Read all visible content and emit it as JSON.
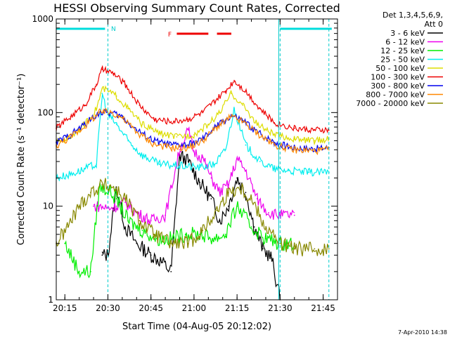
{
  "chart_data": {
    "type": "line",
    "title": "HESSI Observing Summary Count Rates, Corrected",
    "xlabel": "Start Time (04-Aug-05 20:12:02)",
    "ylabel": "Corrected Count Rate (s⁻¹ detector⁻¹)",
    "y_scale": "log",
    "ylim": [
      1,
      1000
    ],
    "xlim": [
      "20:12",
      "21:50"
    ],
    "x_tick_labels": [
      "20:15",
      "20:30",
      "20:45",
      "21:00",
      "21:15",
      "21:30",
      "21:45"
    ],
    "x_ticks": [
      "20:15",
      "20:30",
      "20:45",
      "21:00",
      "21:15",
      "21:30",
      "21:45"
    ],
    "y_tick_labels": [
      "1",
      "10",
      "100",
      "1000"
    ],
    "y_ticks": [
      1,
      10,
      100,
      1000
    ],
    "legend_title": [
      "Det 1,3,4,5,6,9,",
      "Att 0"
    ],
    "legend_placement": "right",
    "timestamp": "7-Apr-2010 14:38",
    "markers": {
      "N_label": "N",
      "F_label": "F",
      "night_bars": [
        [
          "20:12",
          "20:29"
        ],
        [
          "21:30",
          "21:48"
        ]
      ],
      "flare_bars": [
        [
          "20:54",
          "21:05"
        ],
        [
          "21:08",
          "21:13"
        ]
      ],
      "dashed_lines": [
        "20:30",
        "21:30",
        "21:47"
      ],
      "solid_lines": [
        "21:30"
      ]
    },
    "series": [
      {
        "name": "3 - 6 keV",
        "color": "#000000",
        "x": [
          "20:28",
          "20:30",
          "20:33",
          "20:36",
          "20:40",
          "20:45",
          "20:49",
          "20:52",
          "20:55",
          "20:58",
          "21:02",
          "21:06",
          "21:09",
          "21:12",
          "21:15",
          "21:18",
          "21:21",
          "21:24",
          "21:27",
          "21:30"
        ],
        "y": [
          3,
          3,
          16,
          6,
          4,
          3,
          2.5,
          2,
          35,
          30,
          18,
          12,
          7,
          10,
          20,
          14,
          6,
          3.5,
          2.8,
          1
        ]
      },
      {
        "name": "6 - 12 keV",
        "color": "#ee00ee",
        "x": [
          "20:25",
          "20:27",
          "20:30",
          "20:33",
          "20:36",
          "20:40",
          "20:45",
          "20:50",
          "20:55",
          "20:58",
          "21:00",
          "21:03",
          "21:06",
          "21:09",
          "21:12",
          "21:15",
          "21:18",
          "21:22",
          "21:26",
          "21:30",
          "21:35"
        ],
        "y": [
          10,
          10,
          9.5,
          10,
          11,
          8.5,
          7,
          8,
          40,
          65,
          38,
          33,
          20,
          14,
          17,
          32,
          24,
          12,
          8.5,
          8,
          8
        ]
      },
      {
        "name": "12 - 25 keV",
        "color": "#00ee00",
        "x": [
          "20:15",
          "20:20",
          "20:24",
          "20:27",
          "20:30",
          "20:33",
          "20:37",
          "20:42",
          "20:47",
          "20:52",
          "20:57",
          "21:02",
          "21:07",
          "21:11",
          "21:15",
          "21:20",
          "21:25",
          "21:30",
          "21:35"
        ],
        "y": [
          4,
          2,
          2,
          16,
          15,
          12,
          7,
          5.5,
          4.5,
          4.5,
          5,
          5,
          4.5,
          5,
          10,
          6,
          4.5,
          4,
          4
        ]
      },
      {
        "name": "25 - 50 keV",
        "color": "#00eeee",
        "x": [
          "20:12",
          "20:17",
          "20:22",
          "20:26",
          "20:28",
          "20:30",
          "20:33",
          "20:37",
          "20:42",
          "20:48",
          "20:55",
          "21:02",
          "21:07",
          "21:11",
          "21:14",
          "21:18",
          "21:23",
          "21:28",
          "21:33",
          "21:40",
          "21:47"
        ],
        "y": [
          20,
          22,
          25,
          28,
          160,
          95,
          75,
          50,
          35,
          28,
          27,
          26,
          28,
          40,
          110,
          45,
          30,
          25,
          24,
          23,
          23
        ]
      },
      {
        "name": "50 - 100 keV",
        "color": "#dddd00",
        "x": [
          "20:12",
          "20:17",
          "20:22",
          "20:26",
          "20:28",
          "20:30",
          "20:33",
          "20:37",
          "20:42",
          "20:48",
          "20:54",
          "21:00",
          "21:05",
          "21:09",
          "21:13",
          "21:17",
          "21:22",
          "21:28",
          "21:35",
          "21:42",
          "21:47"
        ],
        "y": [
          48,
          55,
          75,
          110,
          180,
          170,
          150,
          110,
          75,
          60,
          55,
          58,
          75,
          100,
          160,
          120,
          75,
          58,
          52,
          50,
          52
        ]
      },
      {
        "name": "100 - 300 keV",
        "color": "#ee0000",
        "x": [
          "20:12",
          "20:17",
          "20:22",
          "20:26",
          "20:28",
          "20:32",
          "20:36",
          "20:41",
          "20:46",
          "20:52",
          "20:58",
          "21:03",
          "21:07",
          "21:11",
          "21:14",
          "21:18",
          "21:23",
          "21:28",
          "21:35",
          "21:42",
          "21:47"
        ],
        "y": [
          68,
          90,
          120,
          200,
          290,
          260,
          200,
          120,
          85,
          80,
          85,
          100,
          130,
          170,
          220,
          170,
          110,
          78,
          68,
          65,
          65
        ]
      },
      {
        "name": "300 - 800 keV",
        "color": "#0000ee",
        "x": [
          "20:12",
          "20:17",
          "20:22",
          "20:27",
          "20:31",
          "20:35",
          "20:40",
          "20:46",
          "20:52",
          "20:58",
          "21:03",
          "21:08",
          "21:13",
          "21:17",
          "21:22",
          "21:28",
          "21:35",
          "21:42",
          "21:47"
        ],
        "y": [
          48,
          58,
          75,
          100,
          100,
          90,
          65,
          50,
          45,
          45,
          52,
          72,
          92,
          82,
          62,
          48,
          42,
          41,
          42
        ]
      },
      {
        "name": "800 - 7000 keV",
        "color": "#ff8800",
        "x": [
          "20:12",
          "20:17",
          "20:22",
          "20:27",
          "20:31",
          "20:35",
          "20:40",
          "20:46",
          "20:52",
          "20:58",
          "21:03",
          "21:08",
          "21:13",
          "21:17",
          "21:22",
          "21:28",
          "21:35",
          "21:42",
          "21:47"
        ],
        "y": [
          44,
          55,
          72,
          100,
          102,
          88,
          62,
          46,
          42,
          42,
          50,
          70,
          90,
          80,
          60,
          45,
          40,
          39,
          40
        ]
      },
      {
        "name": "7000 - 20000 keV",
        "color": "#888800",
        "x": [
          "20:12",
          "20:16",
          "20:20",
          "20:24",
          "20:28",
          "20:32",
          "20:36",
          "20:41",
          "20:46",
          "20:52",
          "20:58",
          "21:03",
          "21:08",
          "21:12",
          "21:16",
          "21:20",
          "21:25",
          "21:30",
          "21:35",
          "21:42",
          "21:47"
        ],
        "y": [
          4,
          6,
          10,
          14,
          17,
          16,
          12,
          7,
          5,
          4,
          4,
          5.5,
          9,
          14,
          16,
          12,
          6,
          4,
          3.5,
          3.5,
          3.5
        ]
      }
    ]
  }
}
